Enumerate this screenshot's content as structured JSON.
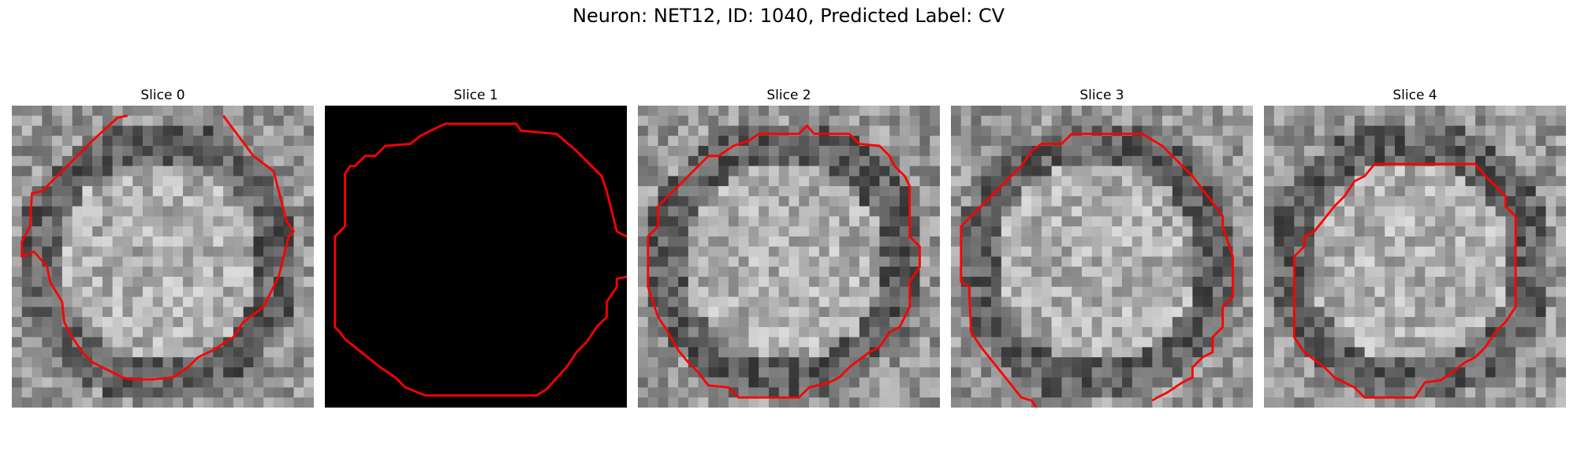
{
  "figure": {
    "title": "Neuron: NET12, ID: 1040, Predicted Label: CV"
  },
  "panels": [
    {
      "title": "Slice 0",
      "kind": "textured",
      "seed": 11
    },
    {
      "title": "Slice 1",
      "kind": "black",
      "seed": 0
    },
    {
      "title": "Slice 2",
      "kind": "textured",
      "seed": 23
    },
    {
      "title": "Slice 3",
      "kind": "textured",
      "seed": 37
    },
    {
      "title": "Slice 4",
      "kind": "textured",
      "seed": 51
    }
  ],
  "colors": {
    "contour": "#ff0000",
    "background": "#ffffff"
  }
}
